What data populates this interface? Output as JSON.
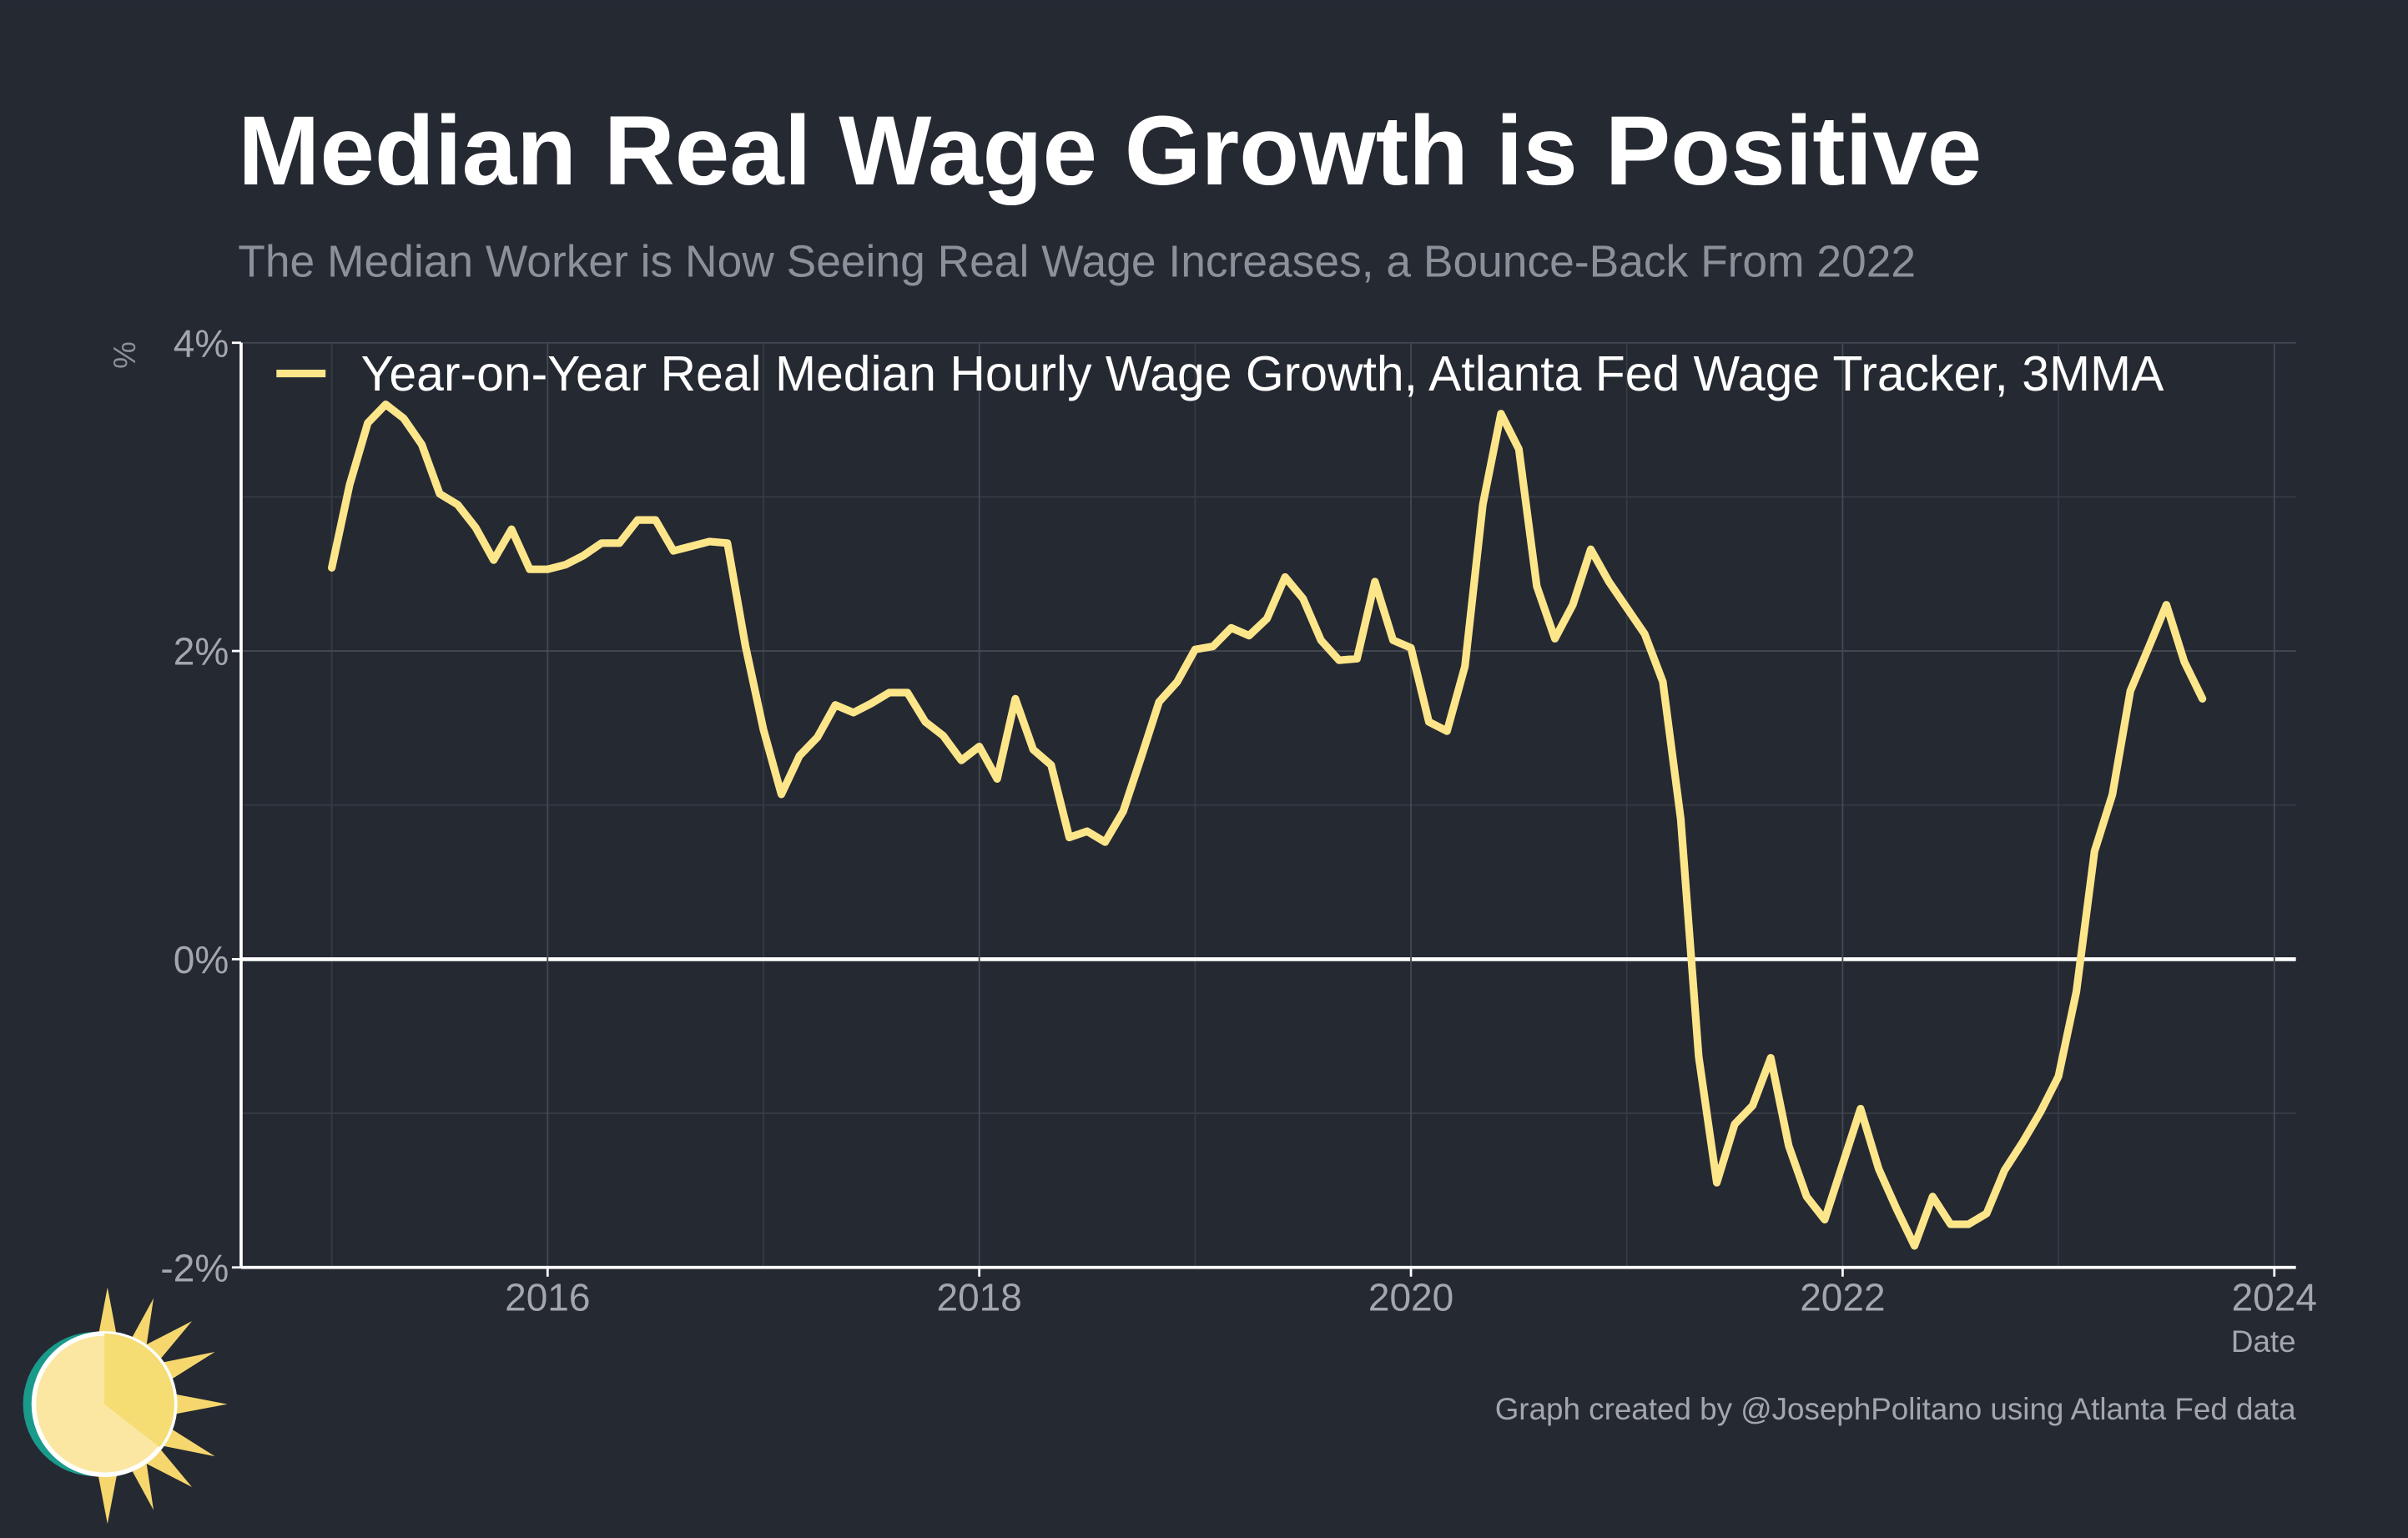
{
  "chart_data": {
    "type": "line",
    "title": "Median Real Wage Growth is Positive",
    "subtitle": "The Median Worker is Now Seeing Real Wage Increases, a Bounce-Back From 2022",
    "y_label": "%",
    "x_label": "Date",
    "credit": "Graph created by @JosephPolitano using Atlanta Fed data",
    "xlim": [
      2014.58,
      2024.1
    ],
    "ylim": [
      -2,
      4
    ],
    "xticks": [
      2016,
      2018,
      2020,
      2022,
      2024
    ],
    "xminorticks": [
      2015,
      2017,
      2019,
      2021,
      2023
    ],
    "yticks": [
      {
        "value": -2,
        "label": "-2%"
      },
      {
        "value": 0,
        "label": "0%"
      },
      {
        "value": 2,
        "label": "2%"
      },
      {
        "value": 4,
        "label": "4%"
      }
    ],
    "yminorticks": [
      -1,
      1,
      3
    ],
    "grid": true,
    "legend": "top-left",
    "x": [
      2015,
      2015.083,
      2015.167,
      2015.25,
      2015.333,
      2015.417,
      2015.5,
      2015.583,
      2015.667,
      2015.75,
      2015.833,
      2015.917,
      2016,
      2016.083,
      2016.167,
      2016.25,
      2016.333,
      2016.417,
      2016.5,
      2016.583,
      2016.667,
      2016.75,
      2016.833,
      2016.917,
      2017,
      2017.083,
      2017.167,
      2017.25,
      2017.333,
      2017.417,
      2017.5,
      2017.583,
      2017.667,
      2017.75,
      2017.833,
      2017.917,
      2018,
      2018.083,
      2018.167,
      2018.25,
      2018.333,
      2018.417,
      2018.5,
      2018.583,
      2018.667,
      2018.75,
      2018.833,
      2018.917,
      2019,
      2019.083,
      2019.167,
      2019.25,
      2019.333,
      2019.417,
      2019.5,
      2019.583,
      2019.667,
      2019.75,
      2019.833,
      2019.917,
      2020,
      2020.083,
      2020.167,
      2020.25,
      2020.333,
      2020.417,
      2020.5,
      2020.583,
      2020.667,
      2020.75,
      2020.833,
      2020.917,
      2021,
      2021.083,
      2021.167,
      2021.25,
      2021.333,
      2021.417,
      2021.5,
      2021.583,
      2021.667,
      2021.75,
      2021.833,
      2021.917,
      2022,
      2022.083,
      2022.167,
      2022.25,
      2022.333,
      2022.417,
      2022.5,
      2022.583,
      2022.667,
      2022.75,
      2022.833,
      2022.917,
      2023,
      2023.083,
      2023.167,
      2023.25,
      2023.333,
      2023.417,
      2023.5,
      2023.583,
      2023.667
    ],
    "series": [
      {
        "name": "Year-on-Year Real Median Hourly Wage Growth, Atlanta Fed Wage Tracker, 3MMA",
        "color": "#fde68a",
        "values": [
          2.54,
          3.08,
          3.48,
          3.6,
          3.51,
          3.34,
          3.02,
          2.95,
          2.8,
          2.59,
          2.79,
          2.53,
          2.53,
          2.56,
          2.62,
          2.7,
          2.7,
          2.85,
          2.85,
          2.65,
          2.68,
          2.71,
          2.7,
          2.03,
          1.49,
          1.07,
          1.32,
          1.44,
          1.65,
          1.6,
          1.66,
          1.73,
          1.73,
          1.54,
          1.45,
          1.29,
          1.38,
          1.17,
          1.69,
          1.36,
          1.26,
          0.79,
          0.83,
          0.76,
          0.96,
          1.31,
          1.67,
          1.8,
          2.01,
          2.03,
          2.15,
          2.1,
          2.21,
          2.48,
          2.34,
          2.07,
          1.94,
          1.95,
          2.45,
          2.07,
          2.02,
          1.54,
          1.48,
          1.9,
          2.95,
          3.54,
          3.31,
          2.42,
          2.08,
          2.3,
          2.66,
          2.45,
          2.28,
          2.11,
          1.8,
          0.91,
          -0.63,
          -1.45,
          -1.07,
          -0.95,
          -0.64,
          -1.21,
          -1.54,
          -1.69,
          -1.33,
          -0.97,
          -1.36,
          -1.62,
          -1.86,
          -1.54,
          -1.72,
          -1.72,
          -1.65,
          -1.37,
          -1.19,
          -0.99,
          -0.76,
          -0.21,
          0.7,
          1.07,
          1.74,
          2.02,
          2.3,
          1.93,
          1.69
        ]
      }
    ]
  }
}
